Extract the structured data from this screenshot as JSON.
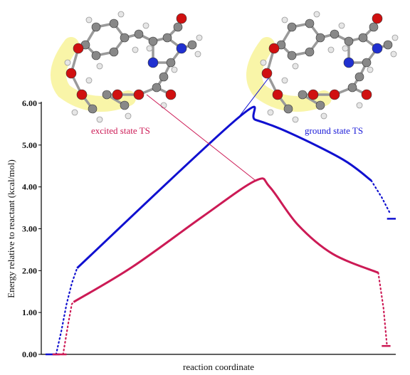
{
  "chart_data": {
    "type": "line",
    "title": "",
    "xlabel": "reaction coordinate",
    "ylabel": "Energy relative to reactant (kcal/mol)",
    "ylim": [
      0,
      6
    ],
    "yticks": [
      "0.00",
      "1.00",
      "2.00",
      "3.00",
      "4.00",
      "5.00",
      "6.00"
    ],
    "grid": false,
    "legend": "none",
    "x_range": [
      0,
      1
    ],
    "series": [
      {
        "name": "ground state TS",
        "color": "#1010d0",
        "label_color": "#1a1ad8",
        "points": [
          [
            0.03,
            0.0
          ],
          [
            0.045,
            0.55
          ],
          [
            0.06,
            1.2
          ],
          [
            0.075,
            1.7
          ],
          [
            0.09,
            2.06
          ],
          [
            0.55,
            5.65
          ],
          [
            0.6,
            5.6
          ],
          [
            0.7,
            5.28
          ],
          [
            0.85,
            4.65
          ],
          [
            0.93,
            4.15
          ]
        ],
        "tail": [
          [
            0.93,
            4.15
          ],
          [
            0.96,
            3.75
          ],
          [
            0.985,
            3.35
          ]
        ],
        "final": [
          [
            0.975,
            3.24
          ],
          [
            1.0,
            3.24
          ]
        ],
        "start": [
          [
            0.0,
            0.0
          ],
          [
            0.04,
            0.0
          ]
        ],
        "peak_x": 0.55
      },
      {
        "name": "excited state TS",
        "color": "#cc1a55",
        "label_color": "#cc1a55",
        "points": [
          [
            0.05,
            0.0
          ],
          [
            0.065,
            0.75
          ],
          [
            0.075,
            1.2
          ],
          [
            0.08,
            1.25
          ],
          [
            0.25,
            2.1
          ],
          [
            0.45,
            3.3
          ],
          [
            0.6,
            4.15
          ],
          [
            0.64,
            4.0
          ],
          [
            0.72,
            3.1
          ],
          [
            0.82,
            2.4
          ],
          [
            0.95,
            1.95
          ]
        ],
        "tail": [
          [
            0.95,
            1.95
          ],
          [
            0.965,
            1.1
          ],
          [
            0.975,
            0.2
          ]
        ],
        "final": [
          [
            0.96,
            0.2
          ],
          [
            0.985,
            0.2
          ]
        ],
        "start": [
          [
            0.02,
            0.0
          ],
          [
            0.06,
            0.0
          ]
        ],
        "peak_x": 0.6
      }
    ],
    "annotations": [
      {
        "text": "excited state TS",
        "color": "#cc1a55"
      },
      {
        "text": "ground state TS",
        "color": "#1a1ad8"
      }
    ]
  }
}
